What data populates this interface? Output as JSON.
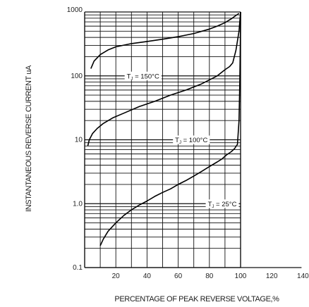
{
  "chart_data": {
    "type": "line",
    "title": "",
    "xlabel": "PERCENTAGE OF PEAK REVERSE VOLTAGE,%",
    "ylabel": "INSTANTANEOUS REVERSE CURRENT uA",
    "xlim": [
      0,
      140
    ],
    "ylim": [
      0.1,
      1000
    ],
    "yscale": "log",
    "x_ticks": [
      "20",
      "40",
      "60",
      "80",
      "100",
      "120",
      "140"
    ],
    "y_ticks": [
      "0.1",
      "1.0",
      "10",
      "100",
      "1000"
    ],
    "grid": true,
    "series": [
      {
        "name": "TJ = 150°C",
        "label_main": "T",
        "label_sub": "J",
        "label_rest": " = 150°C",
        "x": [
          4,
          6,
          10,
          15,
          20,
          30,
          40,
          50,
          60,
          70,
          80,
          85,
          90,
          94,
          97,
          99
        ],
        "y": [
          130,
          170,
          215,
          255,
          285,
          320,
          345,
          375,
          410,
          460,
          540,
          600,
          680,
          780,
          880,
          950
        ]
      },
      {
        "name": "TJ = 100°C",
        "label_main": "T",
        "label_sub": "J",
        "label_rest": " = 100°C",
        "x": [
          2,
          3,
          5,
          8,
          12,
          18,
          25,
          35,
          45,
          55,
          65,
          75,
          85,
          90,
          93,
          95,
          97,
          99,
          100
        ],
        "y": [
          8,
          10,
          12.5,
          15,
          18,
          22,
          26,
          33,
          40,
          50,
          60,
          75,
          100,
          125,
          140,
          160,
          250,
          500,
          1000
        ]
      },
      {
        "name": "TJ = 25°C",
        "label_main": "T",
        "label_sub": "J",
        "label_rest": " = 25°C",
        "x": [
          10,
          12,
          15,
          20,
          25,
          30,
          35,
          40,
          45,
          50,
          55,
          60,
          65,
          70,
          75,
          80,
          85,
          88,
          91,
          94,
          96,
          98,
          99,
          99.5,
          99.8,
          100
        ],
        "y": [
          0.22,
          0.28,
          0.37,
          0.5,
          0.65,
          0.8,
          0.95,
          1.1,
          1.3,
          1.5,
          1.7,
          2.0,
          2.3,
          2.7,
          3.2,
          3.8,
          4.5,
          5.0,
          5.8,
          6.5,
          7.2,
          8.5,
          20,
          80,
          300,
          1000
        ]
      }
    ]
  }
}
